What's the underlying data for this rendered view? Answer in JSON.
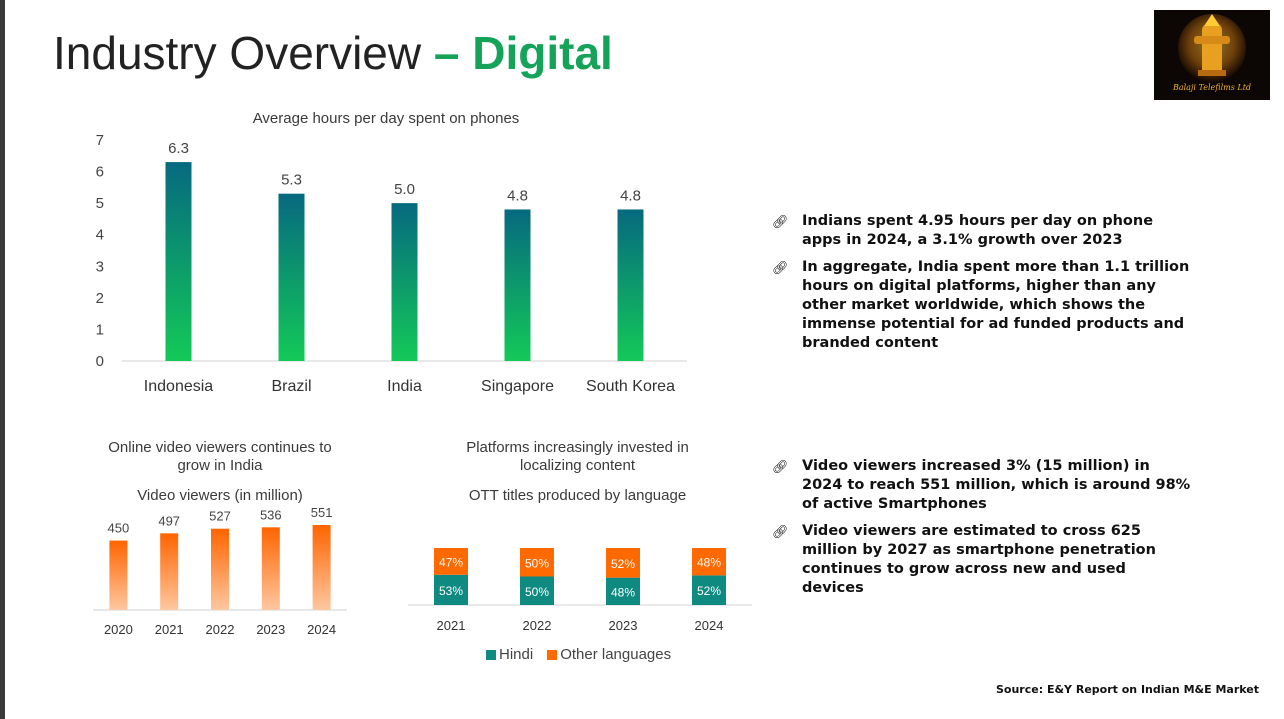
{
  "page": {
    "title_main": "Industry Overview",
    "title_dash": "–",
    "title_accent": "Digital",
    "logo_text": "Balaji Telefilms Ltd",
    "source": "Source: E&Y Report on Indian M&E Market",
    "colors": {
      "accent": "#15a35a",
      "orange": "#ff6a00",
      "teal": "#0e8a80"
    }
  },
  "bullets_top": [
    {
      "icon": "link-bullet-icon",
      "text": "Indians spent 4.95 hours per day on phone apps in 2024, a 3.1% growth over 2023"
    },
    {
      "icon": "link-bullet-icon",
      "text": " In aggregate, India spent more than 1.1 trillion hours on digital platforms, higher than any other market worldwide, which shows the immense potential for ad funded products and branded content"
    }
  ],
  "bullets_bottom": [
    {
      "icon": "link-bullet-icon",
      "text": " Video viewers increased 3% (15 million) in 2024 to reach 551 million, which is around 98% of active Smartphones"
    },
    {
      "icon": "link-bullet-icon",
      "text": "Video viewers are estimated to cross  625 million by 2027 as smartphone penetration continues to grow across new and used devices"
    }
  ],
  "chart_data": [
    {
      "id": "phones",
      "type": "bar",
      "title": "Average hours per day spent on phones",
      "categories": [
        "Indonesia",
        "Brazil",
        "India",
        "Singapore",
        "South Korea"
      ],
      "values": [
        6.3,
        5.3,
        5.0,
        4.8,
        4.8
      ],
      "value_labels": [
        "6.3",
        "5.3",
        "5.0",
        "4.8",
        "4.8"
      ],
      "yticks": [
        "0",
        "1",
        "2",
        "3",
        "4",
        "5",
        "6",
        "7"
      ],
      "ylim": [
        0,
        7
      ]
    },
    {
      "id": "viewers",
      "type": "bar",
      "title": "Online video viewers continues to grow in India",
      "subtitle": "Video viewers (in million)",
      "categories": [
        "2020",
        "2021",
        "2022",
        "2023",
        "2024"
      ],
      "values": [
        450,
        497,
        527,
        536,
        551
      ],
      "value_labels": [
        "450",
        "497",
        "527",
        "536",
        "551"
      ],
      "ylim": [
        0,
        600
      ]
    },
    {
      "id": "ott",
      "type": "bar",
      "stacked": true,
      "title": "Platforms increasingly invested in localizing content",
      "subtitle": "OTT titles produced by language",
      "categories": [
        "2021",
        "2022",
        "2023",
        "2024"
      ],
      "series": [
        {
          "name": "Hindi",
          "values": [
            53,
            50,
            48,
            52
          ],
          "labels": [
            "53%",
            "50%",
            "48%",
            "52%"
          ]
        },
        {
          "name": "Other languages",
          "values": [
            47,
            50,
            52,
            48
          ],
          "labels": [
            "47%",
            "50%",
            "52%",
            "48%"
          ]
        }
      ],
      "ylim": [
        0,
        100
      ]
    }
  ]
}
